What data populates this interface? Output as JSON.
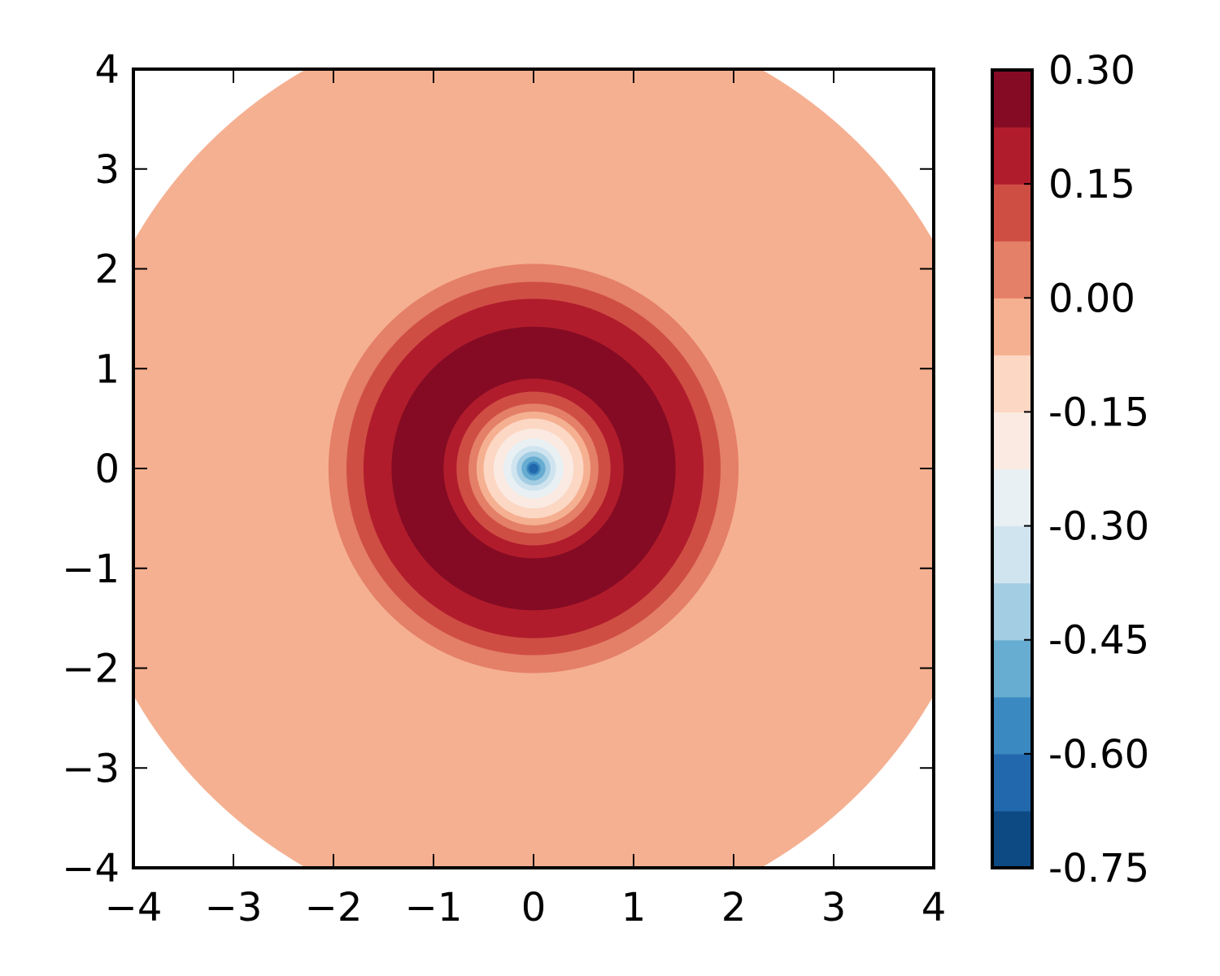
{
  "chart_data": {
    "type": "heatmap",
    "subtype": "filled-contour",
    "title": "",
    "xlabel": "",
    "ylabel": "",
    "xlim": [
      -4,
      4
    ],
    "ylim": [
      -4,
      4
    ],
    "x_ticks": [
      "−4",
      "−3",
      "−2",
      "−1",
      "0",
      "1",
      "2",
      "3",
      "4"
    ],
    "y_ticks": [
      "−4",
      "−3",
      "−2",
      "−1",
      "0",
      "1",
      "2",
      "3",
      "4"
    ],
    "colorbar": {
      "range": [
        -0.75,
        0.3
      ],
      "ticks": [
        "-0.75",
        "-0.60",
        "-0.45",
        "-0.30",
        "-0.15",
        "0.00",
        "0.15",
        "0.30"
      ],
      "levels": [
        -0.75,
        -0.675,
        -0.6,
        -0.525,
        -0.45,
        -0.375,
        -0.3,
        -0.225,
        -0.15,
        -0.075,
        0.0,
        0.075,
        0.15,
        0.225,
        0.3
      ],
      "colors": [
        "#0d4a84",
        "#2268ad",
        "#3b89c1",
        "#67acd1",
        "#a2cde3",
        "#d0e4ef",
        "#e8f0f3",
        "#faeae2",
        "#fcd7c3",
        "#f5b091",
        "#e47f68",
        "#cf4e44",
        "#b11c2c",
        "#840b23"
      ]
    },
    "radial_bands": [
      {
        "r_outer": 4.6,
        "color": "#f5b091"
      },
      {
        "r_outer": 2.05,
        "color": "#e47f68"
      },
      {
        "r_outer": 1.87,
        "color": "#cf4e44"
      },
      {
        "r_outer": 1.7,
        "color": "#b11c2c"
      },
      {
        "r_outer": 1.42,
        "color": "#840b23"
      },
      {
        "r_outer": 0.9,
        "color": "#b11c2c"
      },
      {
        "r_outer": 0.77,
        "color": "#cf4e44"
      },
      {
        "r_outer": 0.65,
        "color": "#e47f68"
      },
      {
        "r_outer": 0.57,
        "color": "#f5b091"
      },
      {
        "r_outer": 0.5,
        "color": "#fcd7c3"
      },
      {
        "r_outer": 0.4,
        "color": "#faeae2"
      },
      {
        "r_outer": 0.3,
        "color": "#e8f0f3"
      },
      {
        "r_outer": 0.225,
        "color": "#d0e4ef"
      },
      {
        "r_outer": 0.17,
        "color": "#a2cde3"
      },
      {
        "r_outer": 0.12,
        "color": "#67acd1"
      },
      {
        "r_outer": 0.07,
        "color": "#3b89c1"
      }
    ],
    "grid": false
  }
}
